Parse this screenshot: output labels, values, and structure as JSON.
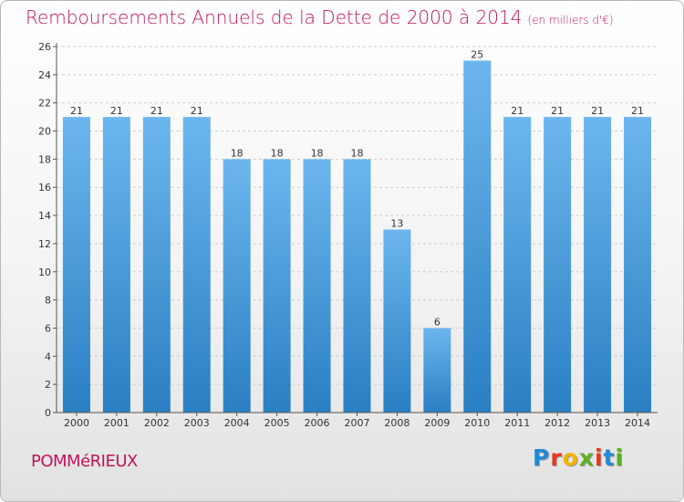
{
  "colors": {
    "title": "#c0145c",
    "bar_light": "#6cb6ee",
    "bar_dark": "#2a7fc2",
    "axis": "#555555",
    "grid": "#cccccc",
    "logo": [
      "#1f8ad4",
      "#e8371a",
      "#f3b400",
      "#5bb025",
      "#e8371a",
      "#1f8ad4",
      "#5bb025"
    ]
  },
  "header": {
    "title": "Remboursements Annuels de la Dette de 2000 à 2014",
    "unit": "(en milliers d'€)"
  },
  "footer": {
    "commune": "POMMéRIEUX",
    "logo_letters": [
      "P",
      "r",
      "o",
      "x",
      "i",
      "t",
      "i"
    ]
  },
  "chart_data": {
    "type": "bar",
    "title": "Remboursements Annuels de la Dette de 2000 à 2014",
    "subtitle": "(en milliers d'€)",
    "xlabel": "",
    "ylabel": "",
    "categories": [
      "2000",
      "2001",
      "2002",
      "2003",
      "2004",
      "2005",
      "2006",
      "2007",
      "2008",
      "2009",
      "2010",
      "2011",
      "2012",
      "2013",
      "2014"
    ],
    "values": [
      21,
      21,
      21,
      21,
      18,
      18,
      18,
      18,
      13,
      6,
      25,
      21,
      21,
      21,
      21
    ],
    "data_labels": [
      "21",
      "21",
      "21",
      "21",
      "18",
      "18",
      "18",
      "18",
      "13",
      "6",
      "25",
      "21",
      "21",
      "21",
      "21"
    ],
    "ylim": [
      0,
      26
    ],
    "yticks": [
      0,
      2,
      4,
      6,
      8,
      10,
      12,
      14,
      16,
      18,
      20,
      22,
      24,
      26
    ],
    "grid": "horizontal dashed",
    "legend": "none"
  }
}
